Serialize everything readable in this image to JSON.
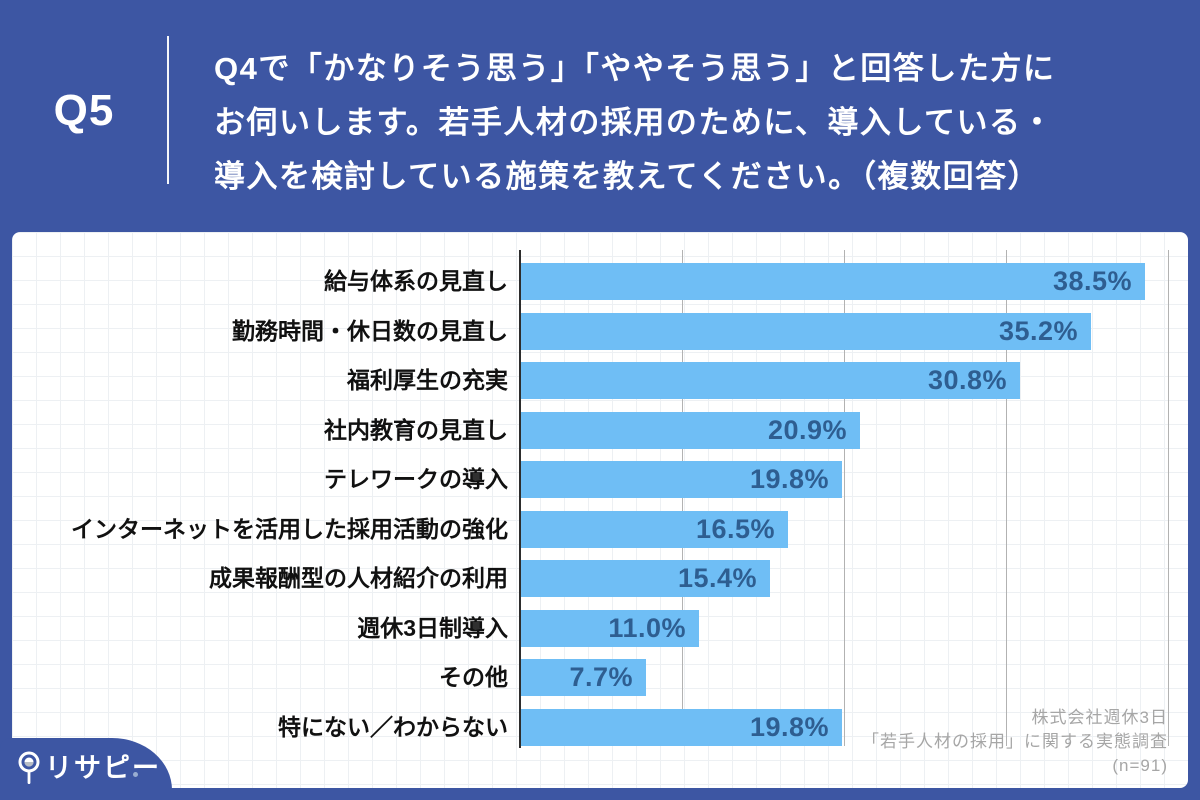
{
  "header": {
    "question_number": "Q5",
    "question_lines": [
      "Q4で「かなりそう思う」「ややそう思う」と回答した方に",
      "お伺いします。若手人材の採用のために、導入している・",
      "導入を検討している施策を教えてください。（複数回答）"
    ]
  },
  "chart_data": {
    "type": "bar",
    "orientation": "horizontal",
    "categories": [
      "給与体系の見直し",
      "勤務時間・休日数の見直し",
      "福利厚生の充実",
      "社内教育の見直し",
      "テレワークの導入",
      "インターネットを活用した採用活動の強化",
      "成果報酬型の人材紹介の利用",
      "週休3日制導入",
      "その他",
      "特にない／わからない"
    ],
    "values": [
      38.5,
      35.2,
      30.8,
      20.9,
      19.8,
      16.5,
      15.4,
      11.0,
      7.7,
      19.8
    ],
    "value_labels": [
      "38.5%",
      "35.2%",
      "30.8%",
      "20.9%",
      "19.8%",
      "16.5%",
      "15.4%",
      "11.0%",
      "7.7%",
      "19.8%"
    ],
    "xlim": [
      0,
      40
    ],
    "xticks": [
      10,
      20,
      30,
      40
    ],
    "grid": true,
    "title": "",
    "xlabel": "",
    "ylabel": ""
  },
  "source": {
    "lines": [
      "株式会社週休3日",
      "「若手人材の採用」に関する実態調査",
      "(n=91)"
    ]
  },
  "logo": {
    "text": "リサピー"
  },
  "colors": {
    "navy": "#3d56a3",
    "bar": "#6fbef5",
    "value-text": "#2e5e91",
    "label-text": "#111111",
    "source-text": "#a6a6a6"
  }
}
